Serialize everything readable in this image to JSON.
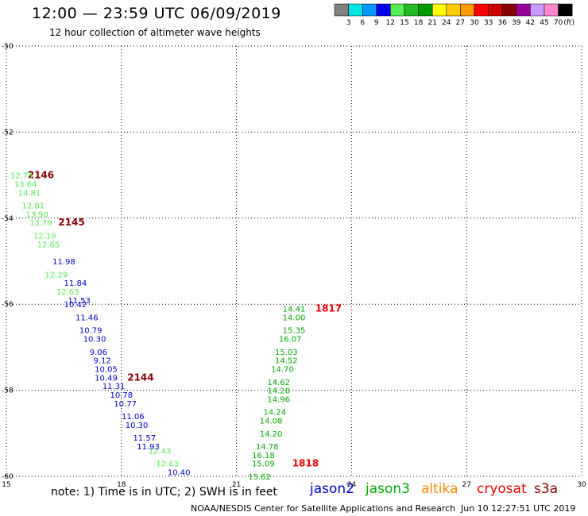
{
  "header": {
    "title": "12:00 — 23:59 UTC 06/09/2019",
    "subtitle": "12 hour collection of altimeter wave heights"
  },
  "colorbar": {
    "colors": [
      "#808080",
      "#00e5e5",
      "#0099ff",
      "#0000ee",
      "#55ee55",
      "#22bb22",
      "#009900",
      "#ffff00",
      "#ffcc00",
      "#ff9900",
      "#ff0000",
      "#cc0000",
      "#880000",
      "#990099",
      "#cc99ff",
      "#ff88cc",
      "#000000"
    ],
    "labels": [
      "3",
      "6",
      "9",
      "12",
      "15",
      "18",
      "21",
      "24",
      "27",
      "30",
      "33",
      "36",
      "39",
      "42",
      "45",
      "70"
    ],
    "unit": "(ft)"
  },
  "footer": {
    "note": "note: 1) Time is in UTC; 2) SWH is in feet",
    "satellites": [
      {
        "name": "jason2",
        "color": "#0000cc"
      },
      {
        "name": "jason3",
        "color": "#00aa00"
      },
      {
        "name": "altika",
        "color": "#ff8800"
      },
      {
        "name": "cryosat",
        "color": "#ee0000"
      },
      {
        "name": "s3a",
        "color": "#880000"
      }
    ],
    "credit": "NOAA/NESDIS Center for Satellite Applications and Research",
    "timestamp": "Jun 10 12:27:51 UTC 2019"
  },
  "chart_data": {
    "type": "scatter",
    "xlim": [
      15,
      30
    ],
    "ylim": [
      -60,
      -50
    ],
    "xticks": [
      "15",
      "18",
      "21",
      "24",
      "27",
      "30"
    ],
    "yticks": [
      "-50",
      "-52",
      "-54",
      "-56",
      "-58",
      "-60"
    ],
    "grid": true,
    "series": [
      {
        "name": "s3a",
        "color": "#880000",
        "points": [
          {
            "x": 15.9,
            "y": -53.0,
            "t": "2146"
          },
          {
            "x": 16.7,
            "y": -54.1,
            "t": "2145"
          },
          {
            "x": 18.5,
            "y": -57.7,
            "t": "2144"
          }
        ]
      },
      {
        "name": "s3a_swh",
        "color": "#55ee55",
        "points": [
          {
            "x": 15.4,
            "y": -53.0,
            "t": "12.75"
          },
          {
            "x": 15.5,
            "y": -53.2,
            "t": "13.64"
          },
          {
            "x": 15.6,
            "y": -53.4,
            "t": "14.81"
          },
          {
            "x": 15.7,
            "y": -53.7,
            "t": "12.81"
          },
          {
            "x": 15.8,
            "y": -53.9,
            "t": "13.90"
          },
          {
            "x": 15.9,
            "y": -54.1,
            "t": "13.79"
          },
          {
            "x": 16.0,
            "y": -54.4,
            "t": "12.19"
          },
          {
            "x": 16.1,
            "y": -54.6,
            "t": "12.65"
          },
          {
            "x": 16.3,
            "y": -55.3,
            "t": "12.29"
          },
          {
            "x": 16.6,
            "y": -55.7,
            "t": "12.63"
          },
          {
            "x": 19.0,
            "y": -59.4,
            "t": "12.43"
          },
          {
            "x": 19.2,
            "y": -59.7,
            "t": "12.63"
          }
        ]
      },
      {
        "name": "jason2",
        "color": "#0000cc",
        "points": [
          {
            "x": 16.5,
            "y": -55.0,
            "t": "11.98"
          },
          {
            "x": 16.8,
            "y": -55.5,
            "t": "11.84"
          },
          {
            "x": 16.9,
            "y": -55.9,
            "t": "11.53"
          },
          {
            "x": 16.8,
            "y": -56.0,
            "t": "10.42"
          },
          {
            "x": 17.1,
            "y": -56.3,
            "t": "11.46"
          },
          {
            "x": 17.2,
            "y": -56.6,
            "t": "10.79"
          },
          {
            "x": 17.3,
            "y": -56.8,
            "t": "10.30"
          },
          {
            "x": 17.4,
            "y": -57.1,
            "t": "9.06"
          },
          {
            "x": 17.5,
            "y": -57.3,
            "t": "9.12"
          },
          {
            "x": 17.6,
            "y": -57.5,
            "t": "10.05"
          },
          {
            "x": 17.6,
            "y": -57.7,
            "t": "10.49"
          },
          {
            "x": 17.8,
            "y": -57.9,
            "t": "11.31"
          },
          {
            "x": 18.0,
            "y": -58.1,
            "t": "10.78"
          },
          {
            "x": 18.1,
            "y": -58.3,
            "t": "10.77"
          },
          {
            "x": 18.3,
            "y": -58.6,
            "t": "11.06"
          },
          {
            "x": 18.4,
            "y": -58.8,
            "t": "10.30"
          },
          {
            "x": 18.6,
            "y": -59.1,
            "t": "11.57"
          },
          {
            "x": 18.7,
            "y": -59.3,
            "t": "11.93"
          },
          {
            "x": 19.5,
            "y": -59.9,
            "t": "10.40"
          }
        ]
      },
      {
        "name": "cryosat",
        "color": "#ee0000",
        "points": [
          {
            "x": 23.4,
            "y": -56.1,
            "t": "1817"
          },
          {
            "x": 22.8,
            "y": -59.7,
            "t": "1818"
          }
        ]
      },
      {
        "name": "jason3",
        "color": "#00aa00",
        "points": [
          {
            "x": 22.5,
            "y": -56.1,
            "t": "14.41"
          },
          {
            "x": 22.5,
            "y": -56.3,
            "t": "14.00"
          },
          {
            "x": 22.5,
            "y": -56.6,
            "t": "15.35"
          },
          {
            "x": 22.4,
            "y": -56.8,
            "t": "16.07"
          },
          {
            "x": 22.3,
            "y": -57.1,
            "t": "15.03"
          },
          {
            "x": 22.3,
            "y": -57.3,
            "t": "14.52"
          },
          {
            "x": 22.2,
            "y": -57.5,
            "t": "14.70"
          },
          {
            "x": 22.1,
            "y": -57.8,
            "t": "14.62"
          },
          {
            "x": 22.1,
            "y": -58.0,
            "t": "14.20"
          },
          {
            "x": 22.1,
            "y": -58.2,
            "t": "14.96"
          },
          {
            "x": 22.0,
            "y": -58.5,
            "t": "14.24"
          },
          {
            "x": 21.9,
            "y": -58.7,
            "t": "14.08"
          },
          {
            "x": 21.9,
            "y": -59.0,
            "t": "14.20"
          },
          {
            "x": 21.8,
            "y": -59.3,
            "t": "14.78"
          },
          {
            "x": 21.7,
            "y": -59.5,
            "t": "16.18"
          },
          {
            "x": 21.7,
            "y": -59.7,
            "t": "15.09"
          },
          {
            "x": 21.6,
            "y": -60.0,
            "t": "15.62"
          }
        ]
      }
    ]
  }
}
